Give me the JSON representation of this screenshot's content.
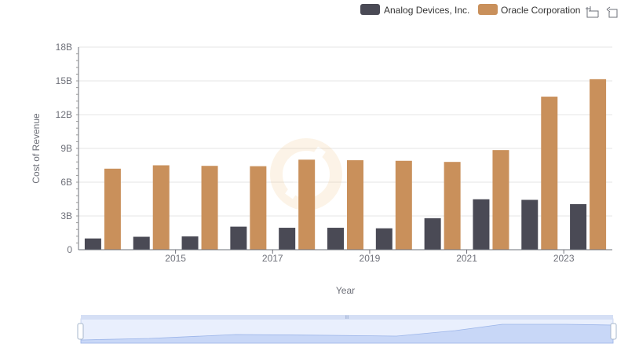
{
  "chart_data": {
    "type": "bar",
    "title": "",
    "xlabel": "Year",
    "ylabel": "Cost of Revenue",
    "x": [
      2014,
      2015,
      2016,
      2017,
      2018,
      2019,
      2020,
      2021,
      2022,
      2023,
      2024
    ],
    "x_tick_labels": [
      "2015",
      "2017",
      "2019",
      "2021",
      "2023"
    ],
    "y_ticks": [
      "0",
      "3B",
      "6B",
      "9B",
      "12B",
      "15B",
      "18B"
    ],
    "ylim": [
      0,
      18000000000
    ],
    "grid": true,
    "legend_position": "top-right",
    "series": [
      {
        "name": "Analog Devices, Inc.",
        "color": "#4a4a55",
        "values": [
          1000000000,
          1150000000,
          1180000000,
          2050000000,
          1950000000,
          1950000000,
          1900000000,
          2800000000,
          4480000000,
          4430000000,
          4050000000
        ]
      },
      {
        "name": "Oracle Corporation",
        "color": "#c9905b",
        "values": [
          7200000000,
          7500000000,
          7450000000,
          7420000000,
          8000000000,
          7950000000,
          7900000000,
          7800000000,
          8850000000,
          13600000000,
          15150000000
        ]
      }
    ]
  },
  "toolbar": {
    "zoom_icon": "data-zoom-icon",
    "restore_icon": "restore-icon"
  },
  "data_zoom": {
    "range_start_percent": 0,
    "range_end_percent": 100
  }
}
